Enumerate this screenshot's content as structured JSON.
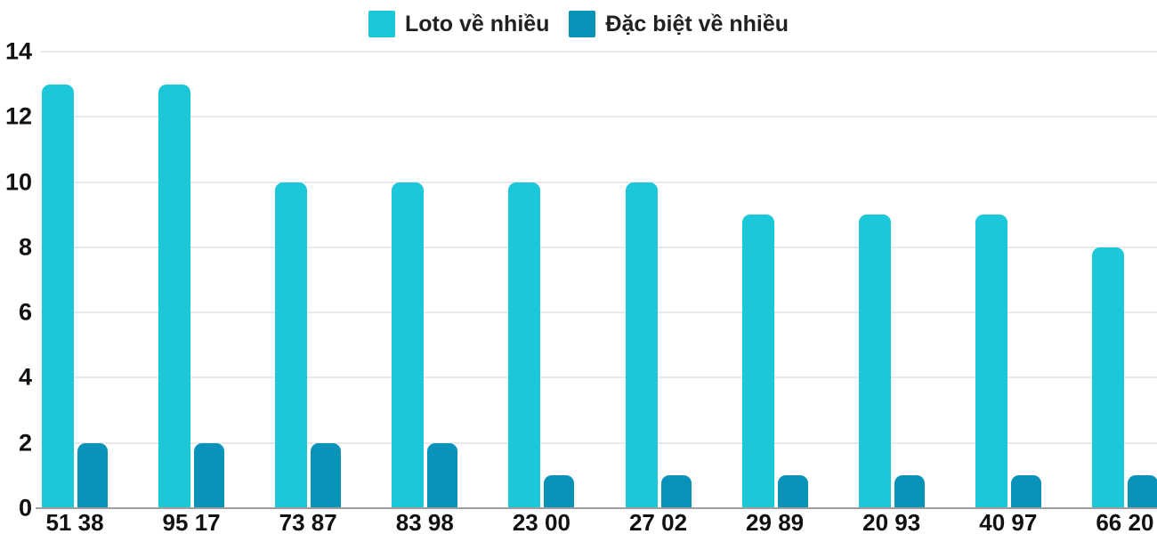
{
  "chart_data": {
    "type": "bar",
    "title": "",
    "categories": [
      "51 38",
      "95 17",
      "73 87",
      "83 98",
      "23 00",
      "27 02",
      "29 89",
      "20 93",
      "40 97",
      "66 20"
    ],
    "series": [
      {
        "name": "Loto về nhiều",
        "color": "#1cc7d9",
        "values": [
          13,
          13,
          10,
          10,
          10,
          10,
          9,
          9,
          9,
          8
        ]
      },
      {
        "name": "Đặc biệt về nhiều",
        "color": "#0a93b9",
        "values": [
          2,
          2,
          2,
          2,
          1,
          1,
          1,
          1,
          1,
          1
        ]
      }
    ],
    "xlabel": "",
    "ylabel": "",
    "y_ticks": [
      0,
      2,
      4,
      6,
      8,
      10,
      12,
      14
    ],
    "ylim": [
      0,
      14
    ],
    "grid": "horizontal",
    "legend_position": "top-center"
  },
  "colors": {
    "background": "#ffffff",
    "gridline": "#e9e9e9",
    "baseline": "#9e9e9e",
    "axis_text": "#111111",
    "legend_text": "#212121"
  }
}
